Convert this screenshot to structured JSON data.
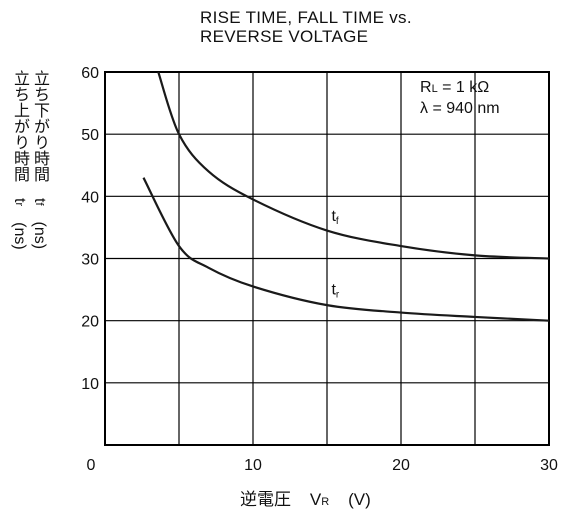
{
  "chart_data": {
    "type": "line",
    "title_lines": [
      "RISE TIME, FALL TIME vs.",
      "REVERSE VOLTAGE"
    ],
    "xlabel": {
      "jp": "逆電圧",
      "symbol": "V",
      "sub": "R",
      "unit": "(V)"
    },
    "ylabel": {
      "line1": "立ち下がり時間　t",
      "line1_sub": "f",
      "line1_unit": "(ns)",
      "line2": "立ち上がり時間　t",
      "line2_sub": "r",
      "line2_unit": "(ns)"
    },
    "xlim": [
      0,
      30
    ],
    "ylim": [
      0,
      60
    ],
    "x_ticks": [
      0,
      10,
      20,
      30
    ],
    "y_ticks": [
      10,
      20,
      30,
      40,
      50,
      60
    ],
    "x_grid_step": 5,
    "y_grid_step": 10,
    "grid": true,
    "conditions": {
      "rl": "R",
      "rl_sub": "L",
      "rl_val": " = 1 kΩ",
      "lambda": "λ = 940 nm"
    },
    "series": [
      {
        "name": "t",
        "sub": "f",
        "x": [
          3.6,
          5,
          7,
          10,
          15,
          20,
          25,
          30
        ],
        "y": [
          60,
          50,
          44,
          39.5,
          34.5,
          32,
          30.5,
          30
        ]
      },
      {
        "name": "t",
        "sub": "r",
        "x": [
          2.6,
          5,
          7,
          10,
          15,
          20,
          25,
          30
        ],
        "y": [
          43,
          32,
          28.5,
          25.5,
          22.5,
          21.3,
          20.6,
          20
        ]
      }
    ]
  }
}
